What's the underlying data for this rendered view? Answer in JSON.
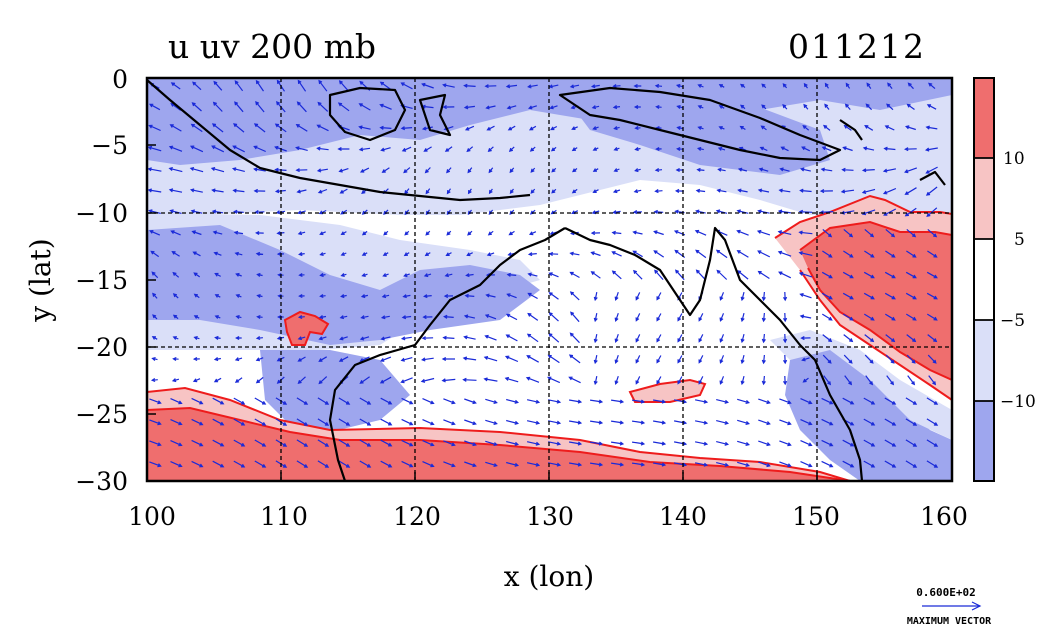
{
  "title_left": "u uv 200 mb",
  "title_right": "011212",
  "xlabel": "x (lon)",
  "ylabel": "y (lat)",
  "x_ticks": [
    "100",
    "110",
    "120",
    "130",
    "140",
    "150",
    "160"
  ],
  "y_ticks": [
    "0",
    "−5",
    "−10",
    "−15",
    "−20",
    "−25",
    "−30"
  ],
  "colorbar_labels": [
    "10",
    "5",
    "−5",
    "−10"
  ],
  "max_vector_value": "0.600E+02",
  "max_vector_label": "MAXIMUM VECTOR",
  "colors": {
    "strong_neg": "#9ea6ee",
    "weak_neg": "#dadff8",
    "neutral": "#ffffff",
    "weak_pos": "#f7c4c4",
    "strong_pos": "#ef6e6e",
    "vectors": "#1a2ad8",
    "contour_pos": "#ee1c1c",
    "coast": "#000000"
  },
  "chart_data": {
    "type": "heatmap",
    "title": "u uv 200 mb",
    "subtitle": "011212",
    "xlabel": "x (lon)",
    "ylabel": "y (lat)",
    "xlim": [
      100,
      160
    ],
    "ylim": [
      -30,
      0
    ],
    "grid": true,
    "color_levels": [
      -10,
      -5,
      5,
      10
    ],
    "legend_position": "right"
  }
}
